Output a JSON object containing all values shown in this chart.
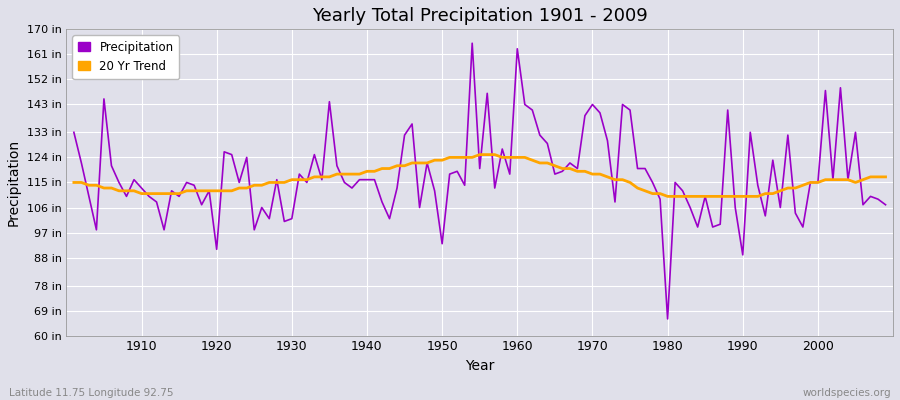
{
  "title": "Yearly Total Precipitation 1901 - 2009",
  "xlabel": "Year",
  "ylabel": "Precipitation",
  "footnote_left": "Latitude 11.75 Longitude 92.75",
  "footnote_right": "worldspecies.org",
  "legend_labels": [
    "Precipitation",
    "20 Yr Trend"
  ],
  "precip_color": "#9B00C8",
  "trend_color": "#FFA500",
  "bg_color": "#E0E0EA",
  "ylim": [
    60,
    170
  ],
  "yticks": [
    60,
    69,
    78,
    88,
    97,
    106,
    115,
    124,
    133,
    143,
    152,
    161,
    170
  ],
  "ytick_labels": [
    "60 in",
    "69 in",
    "78 in",
    "88 in",
    "97 in",
    "106 in",
    "115 in",
    "124 in",
    "133 in",
    "143 in",
    "152 in",
    "161 in",
    "170 in"
  ],
  "years": [
    1901,
    1902,
    1903,
    1904,
    1905,
    1906,
    1907,
    1908,
    1909,
    1910,
    1911,
    1912,
    1913,
    1914,
    1915,
    1916,
    1917,
    1918,
    1919,
    1920,
    1921,
    1922,
    1923,
    1924,
    1925,
    1926,
    1927,
    1928,
    1929,
    1930,
    1931,
    1932,
    1933,
    1934,
    1935,
    1936,
    1937,
    1938,
    1939,
    1940,
    1941,
    1942,
    1943,
    1944,
    1945,
    1946,
    1947,
    1948,
    1949,
    1950,
    1951,
    1952,
    1953,
    1954,
    1955,
    1956,
    1957,
    1958,
    1959,
    1960,
    1961,
    1962,
    1963,
    1964,
    1965,
    1966,
    1967,
    1968,
    1969,
    1970,
    1971,
    1972,
    1973,
    1974,
    1975,
    1976,
    1977,
    1978,
    1979,
    1980,
    1981,
    1982,
    1983,
    1984,
    1985,
    1986,
    1987,
    1988,
    1989,
    1990,
    1991,
    1992,
    1993,
    1994,
    1995,
    1996,
    1997,
    1998,
    1999,
    2000,
    2001,
    2002,
    2003,
    2004,
    2005,
    2006,
    2007,
    2008,
    2009
  ],
  "precipitation": [
    133,
    122,
    110,
    98,
    145,
    121,
    115,
    110,
    116,
    113,
    110,
    108,
    98,
    112,
    110,
    115,
    114,
    107,
    112,
    91,
    126,
    125,
    115,
    124,
    98,
    106,
    102,
    116,
    101,
    102,
    118,
    115,
    125,
    116,
    144,
    121,
    115,
    113,
    116,
    116,
    116,
    108,
    102,
    113,
    132,
    136,
    106,
    122,
    112,
    93,
    118,
    119,
    114,
    165,
    120,
    147,
    113,
    127,
    118,
    163,
    143,
    141,
    132,
    129,
    118,
    119,
    122,
    120,
    139,
    143,
    140,
    130,
    108,
    143,
    141,
    120,
    120,
    115,
    109,
    66,
    115,
    112,
    106,
    99,
    110,
    99,
    100,
    141,
    106,
    89,
    133,
    114,
    103,
    123,
    106,
    132,
    104,
    99,
    115,
    115,
    148,
    116,
    149,
    116,
    133,
    107,
    110,
    109,
    107
  ],
  "trend": [
    115,
    115,
    114,
    114,
    113,
    113,
    112,
    112,
    112,
    111,
    111,
    111,
    111,
    111,
    111,
    112,
    112,
    112,
    112,
    112,
    112,
    112,
    113,
    113,
    114,
    114,
    115,
    115,
    115,
    116,
    116,
    116,
    117,
    117,
    117,
    118,
    118,
    118,
    118,
    119,
    119,
    120,
    120,
    121,
    121,
    122,
    122,
    122,
    123,
    123,
    124,
    124,
    124,
    124,
    125,
    125,
    125,
    124,
    124,
    124,
    124,
    123,
    122,
    122,
    121,
    120,
    120,
    119,
    119,
    118,
    118,
    117,
    116,
    116,
    115,
    113,
    112,
    111,
    111,
    110,
    110,
    110,
    110,
    110,
    110,
    110,
    110,
    110,
    110,
    110,
    110,
    110,
    111,
    111,
    112,
    113,
    113,
    114,
    115,
    115,
    116,
    116,
    116,
    116,
    115,
    116,
    117,
    117,
    117
  ]
}
